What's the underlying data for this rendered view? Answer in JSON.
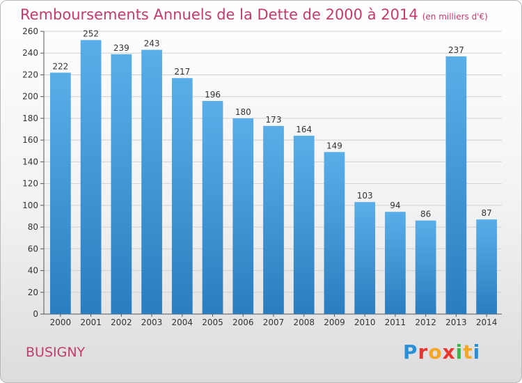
{
  "header": {
    "title": "Remboursements Annuels de la Dette de 2000 à 2014",
    "subtitle": "(en milliers d'€)"
  },
  "footer": {
    "place": "BUSIGNY",
    "logo": "Proxiti"
  },
  "colors": {
    "title": "#c33b6e",
    "bar_light": "#5aaee8",
    "bar_dark": "#2a7ec0"
  },
  "chart_data": {
    "type": "bar",
    "title": "Remboursements Annuels de la Dette de 2000 à 2014",
    "subtitle": "(en milliers d'€)",
    "categories": [
      "2000",
      "2001",
      "2002",
      "2003",
      "2004",
      "2005",
      "2006",
      "2007",
      "2008",
      "2009",
      "2010",
      "2011",
      "2012",
      "2013",
      "2014"
    ],
    "values": [
      222,
      252,
      239,
      243,
      217,
      196,
      180,
      173,
      164,
      149,
      103,
      94,
      86,
      237,
      87
    ],
    "ylim": [
      0,
      260
    ],
    "yticks": [
      0,
      20,
      40,
      60,
      80,
      100,
      120,
      140,
      160,
      180,
      200,
      220,
      240,
      260
    ],
    "grid": true,
    "legend": "none"
  }
}
